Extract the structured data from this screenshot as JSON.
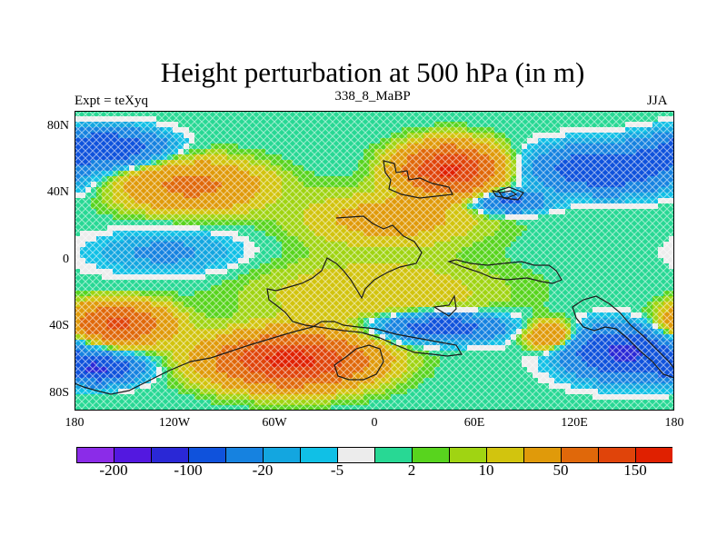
{
  "title": "Height perturbation at 500 hPa (in m)",
  "subtitle": "338_8_MaBP",
  "experiment_label": "Expt = teXyq",
  "season": "JJA",
  "map": {
    "projection": "cylindrical-equidistant",
    "lon_range": [
      -180,
      180
    ],
    "lat_range": [
      -90,
      90
    ],
    "lat_ticks": [
      {
        "value": 80,
        "label": "80N"
      },
      {
        "value": 40,
        "label": "40N"
      },
      {
        "value": 0,
        "label": "0"
      },
      {
        "value": -40,
        "label": "40S"
      },
      {
        "value": -80,
        "label": "80S"
      }
    ],
    "lon_ticks": [
      {
        "value": -180,
        "label": "180"
      },
      {
        "value": -120,
        "label": "120W"
      },
      {
        "value": -60,
        "label": "60W"
      },
      {
        "value": 0,
        "label": "0"
      },
      {
        "value": 60,
        "label": "60E"
      },
      {
        "value": 120,
        "label": "120E"
      },
      {
        "value": 180,
        "label": "180"
      }
    ],
    "field_features": [
      {
        "lon": 45,
        "lat": 55,
        "amplitude": 160,
        "spread_lon": 26,
        "spread_lat": 13
      },
      {
        "lon": -110,
        "lat": 45,
        "amplitude": 60,
        "spread_lon": 40,
        "spread_lat": 14
      },
      {
        "lon": 10,
        "lat": 25,
        "amplitude": 30,
        "spread_lon": 50,
        "spread_lat": 15
      },
      {
        "lon": -50,
        "lat": -60,
        "amplitude": 170,
        "spread_lon": 42,
        "spread_lat": 14
      },
      {
        "lon": -155,
        "lat": -38,
        "amplitude": 110,
        "spread_lon": 28,
        "spread_lat": 11
      },
      {
        "lon": 105,
        "lat": -45,
        "amplitude": 60,
        "spread_lon": 14,
        "spread_lat": 8
      },
      {
        "lon": 0,
        "lat": -20,
        "amplitude": 20,
        "spread_lon": 70,
        "spread_lat": 20
      },
      {
        "lon": -125,
        "lat": 5,
        "amplitude": -25,
        "spread_lon": 40,
        "spread_lat": 12
      },
      {
        "lon": 140,
        "lat": 55,
        "amplitude": -90,
        "spread_lon": 40,
        "spread_lat": 13
      },
      {
        "lon": -160,
        "lat": 68,
        "amplitude": -90,
        "spread_lon": 30,
        "spread_lat": 10
      },
      {
        "lon": 80,
        "lat": 35,
        "amplitude": -60,
        "spread_lon": 20,
        "spread_lat": 6
      },
      {
        "lon": 150,
        "lat": -55,
        "amplitude": -110,
        "spread_lon": 32,
        "spread_lat": 14
      },
      {
        "lon": 40,
        "lat": -40,
        "amplitude": -80,
        "spread_lon": 35,
        "spread_lat": 8
      },
      {
        "lon": -165,
        "lat": -65,
        "amplitude": -100,
        "spread_lon": 22,
        "spread_lat": 8
      }
    ]
  },
  "colorbar": {
    "colors": [
      "#8b2ce8",
      "#5318e0",
      "#2a28d6",
      "#0f52dc",
      "#1682e0",
      "#13a6e0",
      "#10c0e6",
      "#ececec",
      "#28d894",
      "#58d41e",
      "#a0d412",
      "#d2c40e",
      "#e09a0a",
      "#e0680a",
      "#e0440a",
      "#e02000"
    ],
    "levels": [
      -250,
      -200,
      -150,
      -100,
      -50,
      -20,
      -10,
      -5,
      -2,
      2,
      5,
      10,
      20,
      50,
      100,
      150,
      200
    ],
    "labels": [
      "-200",
      "-100",
      "-20",
      "-5",
      "2",
      "10",
      "50",
      "150"
    ]
  }
}
